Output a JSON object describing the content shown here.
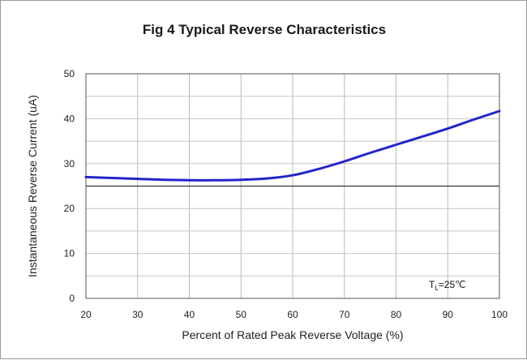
{
  "chart_data": {
    "type": "line",
    "title": "Fig 4 Typical Reverse Characteristics",
    "xlabel": "Percent of Rated Peak Reverse Voltage (%)",
    "ylabel": "Instantaneous Reverse Current (uA)",
    "xlim": [
      20,
      100
    ],
    "ylim": [
      0,
      50
    ],
    "xticks": [
      20,
      30,
      40,
      50,
      60,
      70,
      80,
      90,
      100
    ],
    "yticks": [
      0,
      10,
      20,
      30,
      40,
      50
    ],
    "grid": true,
    "series": [
      {
        "color": "#2424c8",
        "x": [
          20,
          25,
          30,
          35,
          40,
          45,
          50,
          55,
          60,
          65,
          70,
          75,
          80,
          85,
          90,
          95,
          100
        ],
        "y": [
          27.0,
          26.8,
          26.6,
          26.4,
          26.3,
          26.3,
          26.4,
          26.7,
          27.4,
          28.8,
          30.5,
          32.4,
          34.2,
          36.0,
          37.8,
          39.8,
          41.7
        ]
      }
    ],
    "reference_line": {
      "y": 25
    },
    "annotation": {
      "T": "T",
      "sub": "L",
      "rest": "=25℃"
    }
  }
}
